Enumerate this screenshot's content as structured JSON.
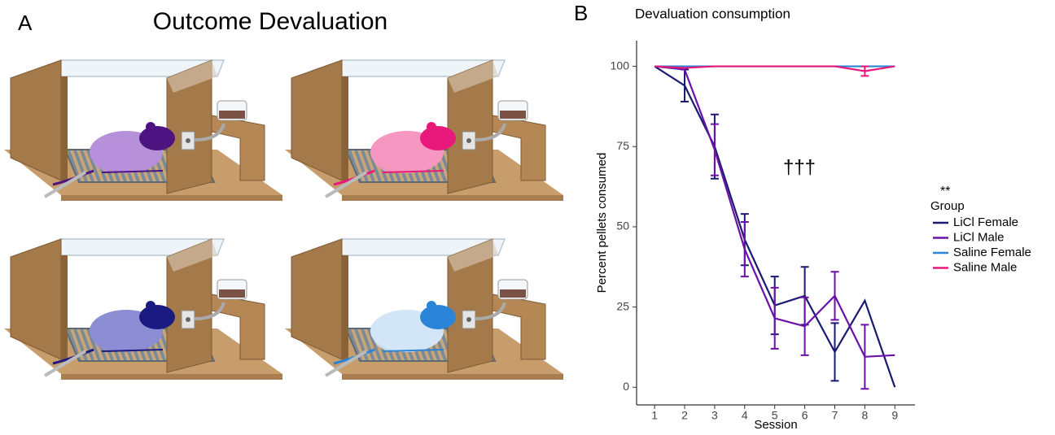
{
  "panel_labels": [
    "A",
    "B"
  ],
  "illustration": {
    "title": "Outcome Devaluation"
  },
  "chart_data": {
    "type": "line",
    "title": "Devaluation consumption",
    "x_label": "Session",
    "y_label": "Percent pellets consumed",
    "x": [
      1,
      2,
      3,
      4,
      5,
      6,
      7,
      8,
      9
    ],
    "xlim": [
      0.4,
      9.67
    ],
    "xticks": [
      1,
      2,
      3,
      4,
      5,
      6,
      7,
      8,
      9
    ],
    "ylim": [
      -5.5,
      108
    ],
    "yticks": [
      0,
      25,
      50,
      75,
      100
    ],
    "grid": false,
    "legend_title": "Group",
    "legend_position": "right",
    "annotations": [
      "†††",
      "**"
    ],
    "series": [
      {
        "name": "LiCl Female",
        "color": "#1a1a72",
        "values": [
          100,
          94,
          75,
          46,
          25.5,
          28.5,
          11,
          27,
          0
        ],
        "errors": [
          null,
          5,
          10,
          8,
          9,
          9,
          9,
          null,
          null
        ]
      },
      {
        "name": "LiCl Male",
        "color": "#6a12a8",
        "values": [
          100,
          99,
          74,
          43,
          21.5,
          19,
          28.5,
          9.5,
          10
        ],
        "errors": [
          null,
          null,
          8,
          8.5,
          9.5,
          9,
          7.5,
          10,
          null
        ]
      },
      {
        "name": "Saline Female",
        "color": "#2a85d8",
        "values": [
          100,
          100,
          100,
          100,
          100,
          100,
          100,
          100,
          100
        ],
        "errors": [
          null,
          null,
          null,
          null,
          null,
          null,
          null,
          null,
          null
        ]
      },
      {
        "name": "Saline Male",
        "color": "#e8197a",
        "values": [
          100,
          99.5,
          100,
          100,
          100,
          100,
          100,
          98.5,
          100
        ],
        "errors": [
          null,
          null,
          null,
          null,
          null,
          null,
          null,
          1.5,
          null
        ]
      }
    ]
  }
}
